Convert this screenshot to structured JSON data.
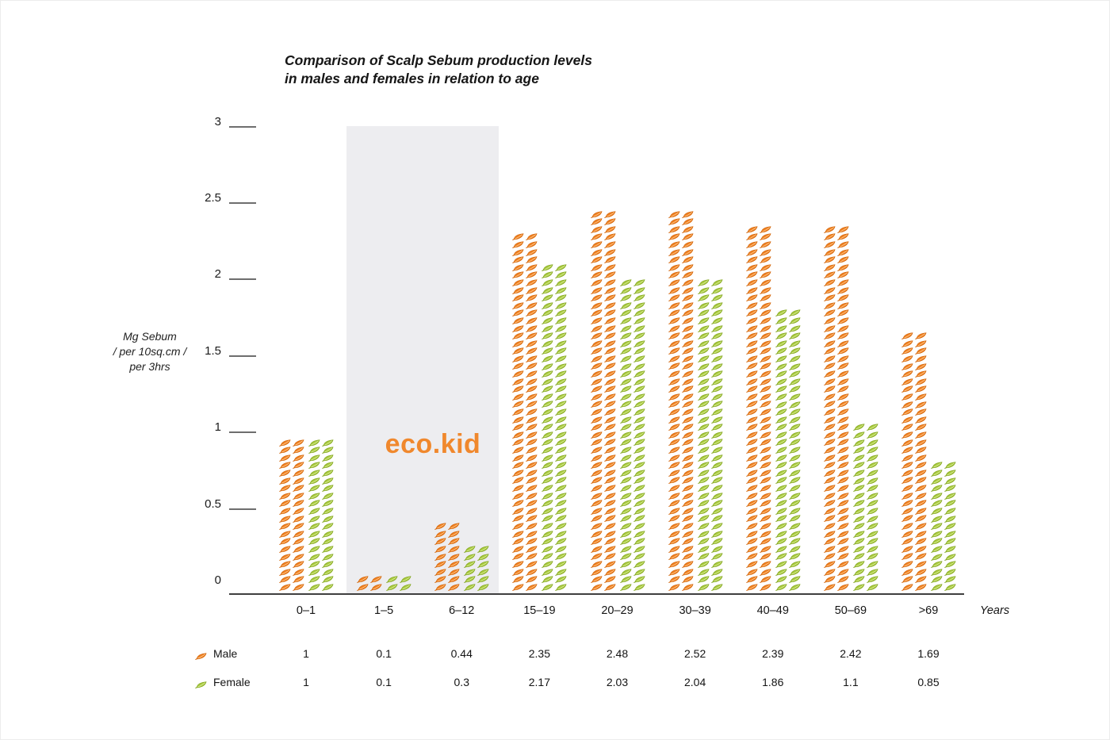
{
  "header": {
    "title": "Comparison of Scalp Sebum production levels\nin males and females in relation to age"
  },
  "y_axis": {
    "label": "Mg Sebum\n/ per 10sq.cm /\nper 3hrs"
  },
  "x_axis": {
    "unit_label": "Years"
  },
  "logo": {
    "text": "eco.kid",
    "color": "#f0882d"
  },
  "chart_data": {
    "type": "bar",
    "subtype": "pictogram",
    "icon": "leaf-icon",
    "title": "Comparison of Scalp Sebum production levels in males and females in relation to age",
    "categories": [
      "0–1",
      "1–5",
      "6–12",
      "15–19",
      "20–29",
      "30–39",
      "40–49",
      "50–69",
      ">69"
    ],
    "series": [
      {
        "name": "Male",
        "color": "#f08122",
        "stroke": "#d2660c",
        "vein": "#ffd9a8",
        "values": [
          1,
          0.1,
          0.44,
          2.35,
          2.48,
          2.52,
          2.39,
          2.42,
          1.69
        ]
      },
      {
        "name": "Female",
        "color": "#a9cb3f",
        "stroke": "#82a51f",
        "vein": "#e2efae",
        "values": [
          1,
          0.1,
          0.3,
          2.17,
          2.03,
          2.04,
          1.86,
          1.1,
          0.85
        ]
      }
    ],
    "xlabel": "Years",
    "ylabel": "Mg Sebum / per 10sq.cm / per 3hrs",
    "ylim": [
      0,
      3
    ],
    "yticks": [
      0,
      0.5,
      1,
      1.5,
      2,
      2.5,
      3
    ],
    "value_per_icon_row": 0.05,
    "icons_per_row": 2,
    "grid": false,
    "legend_position": "bottom-left",
    "value_table_shown": true,
    "highlight_region": {
      "categories": [
        "1–5",
        "6–12"
      ],
      "color": "#ededf0",
      "label": "eco.kid"
    }
  }
}
